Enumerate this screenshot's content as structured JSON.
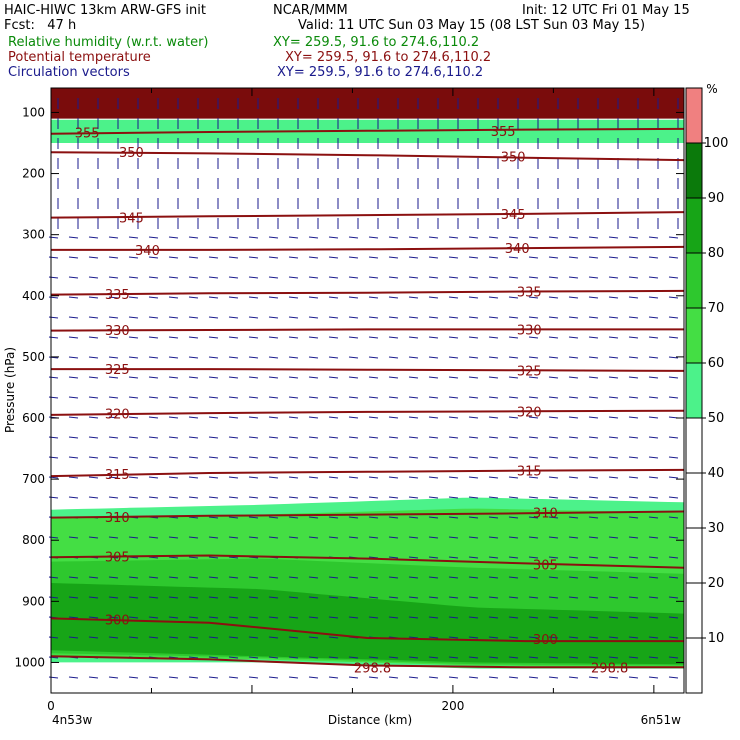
{
  "header": {
    "model": "HAIC-HIWC 13km ARW-GFS init",
    "org": "NCAR/MMM",
    "init": "Init: 12 UTC Fri 01 May 15",
    "fcst": "Fcst:   47 h",
    "valid": "Valid: 11 UTC Sun 03 May 15 (08 LST Sun 03 May 15)",
    "field1_name": "Relative humidity (w.r.t. water)",
    "field1_xy": "XY= 259.5, 91.6 to 274.6,110.2",
    "field2_name": "Potential temperature",
    "field2_xy": "XY= 259.5, 91.6 to 274.6,110.2",
    "field3_name": "Circulation vectors",
    "field3_xy": "XY= 259.5, 91.6 to 274.6,110.2",
    "colors": {
      "field1": "#0a8a0a",
      "field2": "#8b1010",
      "field3": "#1a1a8c"
    }
  },
  "chart_data": {
    "type": "heatmap",
    "ylabel": "Pressure (hPa)",
    "xlabel": "Distance (km)",
    "x_left_label": "4n53w",
    "x_right_label": "6n51w",
    "xlim": [
      0,
      315
    ],
    "ylim": [
      1050,
      60
    ],
    "xticks": [
      0,
      200
    ],
    "yticks": [
      100,
      200,
      300,
      400,
      500,
      600,
      700,
      800,
      900,
      1000
    ],
    "colorbar": {
      "unit": "%",
      "levels": [
        10,
        20,
        30,
        40,
        50,
        60,
        70,
        80,
        90,
        100
      ],
      "bands": [
        {
          "from": 0,
          "to": 50,
          "color": "#ffffff"
        },
        {
          "from": 50,
          "to": 60,
          "color": "#4cf28a"
        },
        {
          "from": 60,
          "to": 70,
          "color": "#44de44"
        },
        {
          "from": 70,
          "to": 80,
          "color": "#2ec82e"
        },
        {
          "from": 80,
          "to": 90,
          "color": "#17a517"
        },
        {
          "from": 90,
          "to": 100,
          "color": "#0b7a0b"
        },
        {
          "from": 100,
          "to": 110,
          "color": "#f08080"
        }
      ]
    },
    "theta_contours": [
      {
        "label": "355",
        "p": [
          135,
          132,
          130,
          128,
          127
        ]
      },
      {
        "label": "350",
        "p": [
          165,
          167,
          170,
          174,
          178
        ]
      },
      {
        "label": "345",
        "p": [
          272,
          270,
          268,
          266,
          263
        ]
      },
      {
        "label": "340",
        "p": [
          325,
          325,
          324,
          322,
          320
        ]
      },
      {
        "label": "335",
        "p": [
          398,
          396,
          395,
          393,
          392
        ]
      },
      {
        "label": "330",
        "p": [
          457,
          456,
          455,
          455,
          455
        ]
      },
      {
        "label": "325",
        "p": [
          520,
          520,
          521,
          522,
          523
        ]
      },
      {
        "label": "320",
        "p": [
          595,
          592,
          590,
          589,
          588
        ]
      },
      {
        "label": "315",
        "p": [
          695,
          690,
          688,
          686,
          685
        ]
      },
      {
        "label": "310",
        "p": [
          763,
          760,
          758,
          756,
          753
        ]
      },
      {
        "label": "305",
        "p": [
          828,
          825,
          830,
          838,
          845
        ]
      },
      {
        "label": "300",
        "p": [
          928,
          935,
          960,
          965,
          965
        ]
      },
      {
        "label": "298.8",
        "p": [
          990,
          995,
          1005,
          1008,
          1008
        ]
      }
    ],
    "theta_label_positions": [
      {
        "label": "355",
        "x": 18,
        "p": 133
      },
      {
        "label": "355",
        "x": 225,
        "p": 130
      },
      {
        "label": "350",
        "x": 40,
        "p": 165
      },
      {
        "label": "350",
        "x": 230,
        "p": 172
      },
      {
        "label": "345",
        "x": 40,
        "p": 272
      },
      {
        "label": "345",
        "x": 230,
        "p": 266
      },
      {
        "label": "340",
        "x": 48,
        "p": 325
      },
      {
        "label": "340",
        "x": 232,
        "p": 322
      },
      {
        "label": "335",
        "x": 33,
        "p": 397
      },
      {
        "label": "335",
        "x": 238,
        "p": 393
      },
      {
        "label": "330",
        "x": 33,
        "p": 456
      },
      {
        "label": "330",
        "x": 238,
        "p": 455
      },
      {
        "label": "325",
        "x": 33,
        "p": 520
      },
      {
        "label": "325",
        "x": 238,
        "p": 522
      },
      {
        "label": "320",
        "x": 33,
        "p": 593
      },
      {
        "label": "320",
        "x": 238,
        "p": 589
      },
      {
        "label": "315",
        "x": 33,
        "p": 692
      },
      {
        "label": "315",
        "x": 238,
        "p": 686
      },
      {
        "label": "310",
        "x": 33,
        "p": 762
      },
      {
        "label": "310",
        "x": 246,
        "p": 755
      },
      {
        "label": "305",
        "x": 33,
        "p": 827
      },
      {
        "label": "305",
        "x": 246,
        "p": 840
      },
      {
        "label": "300",
        "x": 33,
        "p": 930
      },
      {
        "label": "300",
        "x": 246,
        "p": 962
      },
      {
        "label": "298.8",
        "x": 160,
        "p": 1008
      },
      {
        "label": "298.8",
        "x": 278,
        "p": 1008
      }
    ],
    "rh_regions": [
      {
        "level": ">=100",
        "color": "#7a0c0c",
        "top": [
          60,
          60,
          60,
          60
        ],
        "bottom": [
          110,
          110,
          110,
          110
        ]
      },
      {
        "level": "50-60",
        "color": "#4cf28a",
        "top": [
          112,
          112,
          112,
          112
        ],
        "bottom": [
          150,
          150,
          150,
          150
        ]
      },
      {
        "level": "50-60",
        "color": "#4cf28a",
        "top": [
          750,
          742,
          730,
          738
        ],
        "bottom": [
          1000,
          1000,
          1010,
          1010
        ]
      },
      {
        "level": "60-70",
        "color": "#44de44",
        "top": [
          765,
          758,
          748,
          755
        ],
        "bottom": [
          990,
          995,
          1005,
          1008
        ]
      },
      {
        "level": "70-80",
        "color": "#2ec82e",
        "top": [
          835,
          830,
          845,
          855
        ],
        "bottom": [
          985,
          992,
          1003,
          1005
        ]
      },
      {
        "level": "80-90",
        "color": "#17a517",
        "top": [
          870,
          880,
          910,
          920
        ],
        "bottom": [
          980,
          990,
          1000,
          1003
        ]
      }
    ],
    "surface_p": [
      990,
      995,
      1005,
      1010
    ]
  }
}
